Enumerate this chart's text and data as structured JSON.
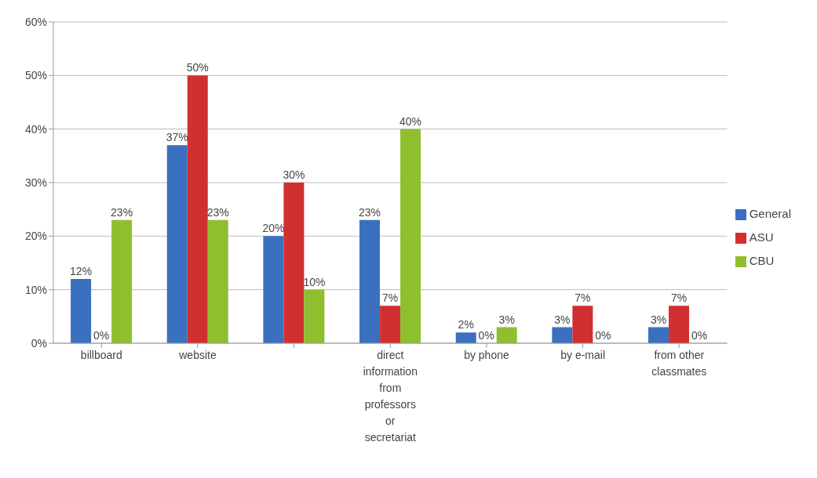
{
  "chart_data": {
    "type": "bar",
    "categories": [
      "billboard",
      "website",
      null,
      "direct information from professors or secretariat",
      "by phone",
      "by e-mail",
      "from other classmates"
    ],
    "series": [
      {
        "name": "General",
        "color": "#3a70bf",
        "values": [
          12,
          37,
          20,
          23,
          2,
          3,
          3
        ],
        "value_labels": [
          "12%",
          "37%",
          "20%",
          "23%",
          "2%",
          "3%",
          "3%"
        ]
      },
      {
        "name": "ASU",
        "color": "#d0302f",
        "values": [
          0,
          50,
          30,
          7,
          0,
          7,
          7
        ],
        "value_labels": [
          "0%",
          "50%",
          "30%",
          "7%",
          "0%",
          "7%",
          "7%"
        ]
      },
      {
        "name": "CBU",
        "color": "#8fbf2f",
        "values": [
          23,
          23,
          10,
          40,
          3,
          0,
          0
        ],
        "value_labels": [
          "23%",
          "23%",
          "10%",
          "40%",
          "3%",
          "0%",
          "0%"
        ]
      }
    ],
    "ylim": [
      0,
      60
    ],
    "yticks": [
      {
        "value": 0,
        "label": "0%"
      },
      {
        "value": 10,
        "label": "10%"
      },
      {
        "value": 20,
        "label": "20%"
      },
      {
        "value": 30,
        "label": "30%"
      },
      {
        "value": 40,
        "label": "40%"
      },
      {
        "value": 50,
        "label": "50%"
      },
      {
        "value": 60,
        "label": "60%"
      }
    ],
    "grid": "y",
    "legend": "right"
  }
}
